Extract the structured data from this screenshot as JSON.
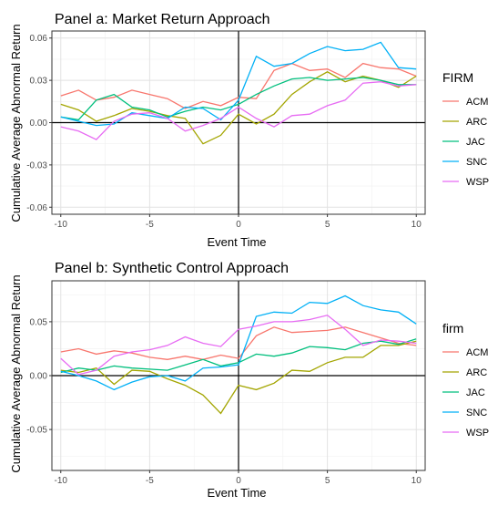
{
  "panels": [
    {
      "title": "Panel a: Market Return Approach",
      "xlabel": "Event Time",
      "ylabel": "Cumulative Average Abnormal Return",
      "legend_title": "FIRM"
    },
    {
      "title": "Panel b: Synthetic Control Approach",
      "xlabel": "Event Time",
      "ylabel": "Cumulative Average Abnormal Return",
      "legend_title": "firm"
    }
  ],
  "chart_data": [
    {
      "type": "line",
      "title": "Panel a: Market Return Approach",
      "xlabel": "Event Time",
      "ylabel": "Cumulative Average Abnormal Return",
      "xlim": [
        -10.5,
        10.5
      ],
      "ylim": [
        -0.065,
        0.065
      ],
      "xticks": [
        -10,
        -5,
        0,
        5,
        10
      ],
      "xtick_labels": [
        "-10",
        "-5",
        "0",
        "5",
        "10"
      ],
      "yticks": [
        -0.06,
        -0.03,
        0.0,
        0.03,
        0.06
      ],
      "ytick_labels": [
        "-0.06",
        "-0.03",
        "0.00",
        "0.03",
        "0.06"
      ],
      "grid": true,
      "reference_lines": {
        "x": 0,
        "y": 0
      },
      "legend": {
        "title": "FIRM",
        "placement": "right"
      },
      "x": [
        -10,
        -9,
        -8,
        -7,
        -6,
        -5,
        -4,
        -3,
        -2,
        -1,
        0,
        1,
        2,
        3,
        4,
        5,
        6,
        7,
        8,
        9,
        10
      ],
      "series": [
        {
          "name": "ACM",
          "color": "#F8766D",
          "values": [
            0.019,
            0.023,
            0.016,
            0.018,
            0.023,
            0.02,
            0.017,
            0.01,
            0.015,
            0.012,
            0.018,
            0.017,
            0.037,
            0.042,
            0.037,
            0.038,
            0.032,
            0.042,
            0.039,
            0.038,
            0.033
          ]
        },
        {
          "name": "ARC",
          "color": "#A3A500",
          "values": [
            0.013,
            0.009,
            0.001,
            0.005,
            0.01,
            0.008,
            0.005,
            0.003,
            -0.015,
            -0.009,
            0.006,
            -0.001,
            0.006,
            0.02,
            0.029,
            0.036,
            0.029,
            0.033,
            0.03,
            0.025,
            0.033
          ]
        },
        {
          "name": "JAC",
          "color": "#00BF7D",
          "values": [
            0.004,
            0.002,
            0.016,
            0.02,
            0.011,
            0.009,
            0.004,
            0.008,
            0.011,
            0.009,
            0.013,
            0.02,
            0.026,
            0.031,
            0.032,
            0.03,
            0.031,
            0.032,
            0.03,
            0.027,
            0.027
          ]
        },
        {
          "name": "SNC",
          "color": "#00B0F6",
          "values": [
            0.004,
            0.001,
            -0.002,
            -0.001,
            0.007,
            0.005,
            0.003,
            0.011,
            0.01,
            0.002,
            0.016,
            0.047,
            0.04,
            0.042,
            0.049,
            0.054,
            0.051,
            0.052,
            0.057,
            0.039,
            0.038
          ]
        },
        {
          "name": "WSP",
          "color": "#E76BF3",
          "values": [
            -0.003,
            -0.006,
            -0.012,
            0.001,
            0.006,
            0.007,
            0.003,
            -0.006,
            -0.002,
            0.003,
            0.011,
            0.003,
            -0.003,
            0.005,
            0.006,
            0.012,
            0.016,
            0.028,
            0.029,
            0.026,
            0.027
          ]
        }
      ]
    },
    {
      "type": "line",
      "title": "Panel b: Synthetic Control Approach",
      "xlabel": "Event Time",
      "ylabel": "Cumulative Average Abnormal Return",
      "xlim": [
        -10.5,
        10.5
      ],
      "ylim": [
        -0.088,
        0.088
      ],
      "xticks": [
        -10,
        -5,
        0,
        5,
        10
      ],
      "xtick_labels": [
        "-10",
        "-5",
        "0",
        "5",
        "10"
      ],
      "yticks": [
        -0.05,
        0.0,
        0.05
      ],
      "ytick_labels": [
        "-0.05",
        "0.00",
        "0.05"
      ],
      "grid": true,
      "reference_lines": {
        "x": 0,
        "y": 0
      },
      "legend": {
        "title": "firm",
        "placement": "right"
      },
      "x": [
        -10,
        -9,
        -8,
        -7,
        -6,
        -5,
        -4,
        -3,
        -2,
        -1,
        0,
        1,
        2,
        3,
        4,
        5,
        6,
        7,
        8,
        9,
        10
      ],
      "series": [
        {
          "name": "ACM",
          "color": "#F8766D",
          "values": [
            0.022,
            0.025,
            0.02,
            0.023,
            0.021,
            0.017,
            0.015,
            0.018,
            0.015,
            0.019,
            0.016,
            0.037,
            0.045,
            0.04,
            0.041,
            0.042,
            0.045,
            0.04,
            0.035,
            0.03,
            0.028
          ]
        },
        {
          "name": "ARC",
          "color": "#A3A500",
          "values": [
            0.005,
            0.003,
            0.007,
            -0.008,
            0.005,
            0.004,
            -0.003,
            -0.009,
            -0.018,
            -0.035,
            -0.009,
            -0.013,
            -0.007,
            0.005,
            0.004,
            0.012,
            0.017,
            0.017,
            0.028,
            0.028,
            0.032
          ]
        },
        {
          "name": "JAC",
          "color": "#00BF7D",
          "values": [
            0.003,
            0.007,
            0.005,
            0.009,
            0.007,
            0.006,
            0.005,
            0.01,
            0.015,
            0.009,
            0.012,
            0.02,
            0.018,
            0.021,
            0.027,
            0.026,
            0.024,
            0.03,
            0.032,
            0.029,
            0.034
          ]
        },
        {
          "name": "SNC",
          "color": "#00B0F6",
          "values": [
            0.004,
            0.0,
            -0.005,
            -0.013,
            -0.006,
            -0.001,
            0.0,
            -0.005,
            0.007,
            0.008,
            0.01,
            0.055,
            0.059,
            0.058,
            0.068,
            0.067,
            0.074,
            0.065,
            0.061,
            0.059,
            0.048
          ]
        },
        {
          "name": "WSP",
          "color": "#E76BF3",
          "values": [
            0.016,
            0.001,
            0.005,
            0.018,
            0.022,
            0.024,
            0.028,
            0.036,
            0.03,
            0.027,
            0.043,
            0.046,
            0.05,
            0.05,
            0.052,
            0.056,
            0.043,
            0.028,
            0.033,
            0.032,
            0.03
          ]
        }
      ]
    }
  ]
}
